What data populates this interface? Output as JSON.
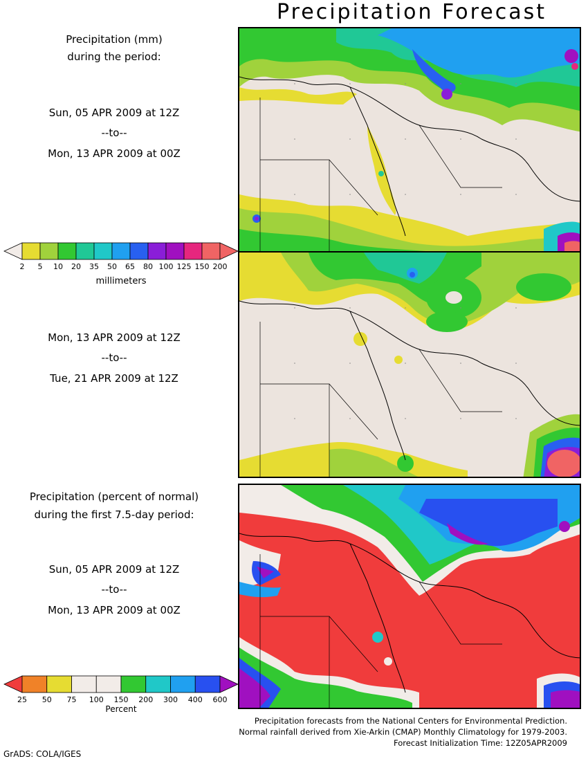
{
  "title": "Precipitation Forecast",
  "panel1": {
    "header_line1": "Precipitation (mm)",
    "header_line2": "during the period:",
    "start": "Sun, 05 APR 2009 at 12Z",
    "sep": "--to--",
    "end": "Mon, 13 APR 2009 at 00Z"
  },
  "panel2": {
    "start": "Mon, 13 APR 2009 at 12Z",
    "sep": "--to--",
    "end": "Tue, 21 APR 2009 at 12Z"
  },
  "panel3": {
    "header_line1": "Precipitation (percent of normal)",
    "header_line2": "during the first 7.5-day period:",
    "start": "Sun, 05 APR 2009 at 12Z",
    "sep": "--to--",
    "end": "Mon, 13 APR 2009 at 00Z"
  },
  "colorbar_mm": {
    "labels": [
      "2",
      "5",
      "10",
      "20",
      "35",
      "50",
      "65",
      "80",
      "100",
      "125",
      "150",
      "200"
    ],
    "colors": [
      "#f2ece8",
      "#e6dc32",
      "#a0d23c",
      "#32c832",
      "#20c896",
      "#20c8c8",
      "#20a0f0",
      "#2860f0",
      "#8a1ed8",
      "#a010c0",
      "#e6267e",
      "#f06464",
      "#f06464"
    ],
    "unit": "millimeters"
  },
  "colorbar_pct": {
    "labels": [
      "25",
      "50",
      "75",
      "100",
      "150",
      "200",
      "300",
      "400",
      "600"
    ],
    "colors": [
      "#f03c3c",
      "#f08228",
      "#e6dc32",
      "#f2ece8",
      "#f2ece8",
      "#32c832",
      "#20c8c8",
      "#20a0f0",
      "#2850f0",
      "#a010c0"
    ],
    "unit": "Percent"
  },
  "footer": {
    "line1": "Precipitation forecasts from the National Centers for Environmental Prediction.",
    "line2": "Normal rainfall derived from Xie-Arkin (CMAP) Monthly Climatology for 1979-2003.",
    "line3": "Forecast Initialization Time: 12Z05APR2009"
  },
  "credit": "GrADS: COLA/IGES",
  "colors": {
    "land": "#ece4de",
    "red_deficit": "#f03c3c",
    "frame": "#000000"
  }
}
